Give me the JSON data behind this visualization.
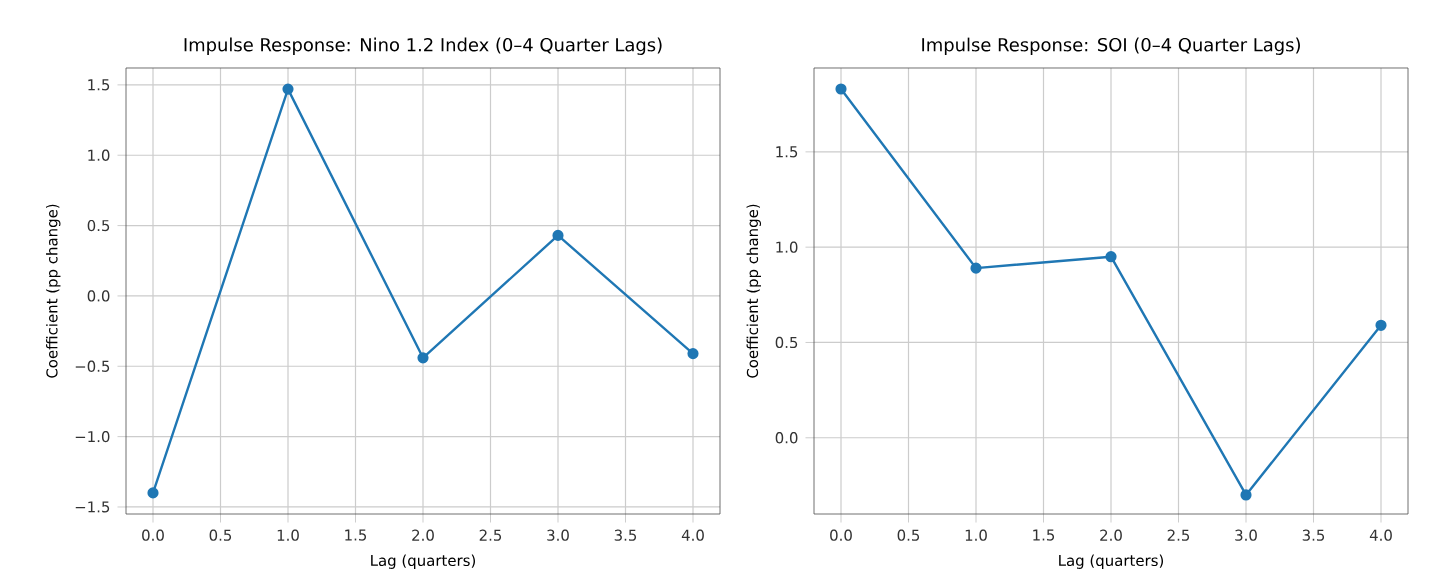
{
  "chart_data": [
    {
      "type": "line",
      "title": "Impulse Response: Nino 1.2 Index (0–4 Quarter Lags)",
      "xlabel": "Lag (quarters)",
      "ylabel": "Coefficient (pp change)",
      "x": [
        0,
        1,
        2,
        3,
        4
      ],
      "series": [
        {
          "color": "#1f77b4",
          "values": [
            -1.4,
            1.47,
            -0.44,
            0.43,
            -0.41
          ]
        }
      ],
      "xlim": [
        -0.2,
        4.2
      ],
      "xticks": [
        {
          "value": 0,
          "label": "0.0"
        },
        0.5,
        {
          "value": 1,
          "label": "1.0"
        },
        1.5,
        {
          "value": 2,
          "label": "2.0"
        },
        2.5,
        {
          "value": 3,
          "label": "3.0"
        },
        3.5,
        {
          "value": 4,
          "label": "4.0"
        }
      ],
      "ylim": [
        -1.55,
        1.62
      ],
      "yticks": [
        {
          "value": -1.5,
          "label": "−1.5"
        },
        {
          "value": -1,
          "label": "−1.0"
        },
        {
          "value": -0.5,
          "label": "−0.5"
        },
        {
          "value": 0,
          "label": "0.0"
        },
        {
          "value": 0.5,
          "label": "0.5"
        },
        {
          "value": 1,
          "label": "1.0"
        },
        {
          "value": 1.5,
          "label": "1.5"
        }
      ],
      "grid": true,
      "marker": "circle",
      "line_style": "solid"
    },
    {
      "type": "line",
      "title": "Impulse Response: SOI (0–4 Quarter Lags)",
      "xlabel": "Lag (quarters)",
      "ylabel": "Coefficient (pp change)",
      "x": [
        0,
        1,
        2,
        3,
        4
      ],
      "series": [
        {
          "color": "#1f77b4",
          "values": [
            1.83,
            0.89,
            0.95,
            -0.3,
            0.59
          ]
        }
      ],
      "xlim": [
        -0.2,
        4.2
      ],
      "xticks": [
        {
          "value": 0,
          "label": "0.0"
        },
        0.5,
        {
          "value": 1,
          "label": "1.0"
        },
        1.5,
        {
          "value": 2,
          "label": "2.0"
        },
        2.5,
        {
          "value": 3,
          "label": "3.0"
        },
        3.5,
        {
          "value": 4,
          "label": "4.0"
        }
      ],
      "ylim": [
        -0.4,
        1.94
      ],
      "yticks": [
        {
          "value": 0,
          "label": "0.0"
        },
        {
          "value": 0.5,
          "label": "0.5"
        },
        {
          "value": 1,
          "label": "1.0"
        },
        {
          "value": 1.5,
          "label": "1.5"
        }
      ],
      "grid": true,
      "marker": "circle",
      "line_style": "solid"
    }
  ]
}
